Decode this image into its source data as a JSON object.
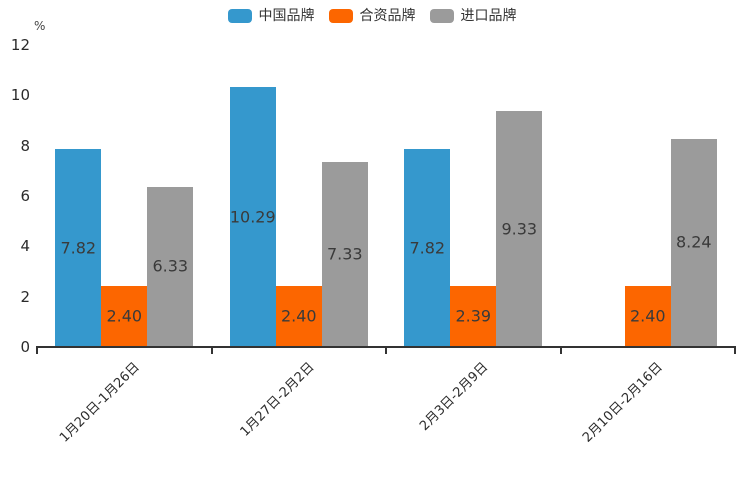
{
  "chart_data": {
    "type": "bar",
    "title": "",
    "unit_label": "%",
    "categories": [
      "1月20日-1月26日",
      "1月27日-2月2日",
      "2月3日-2月9日",
      "2月10日-2月16日"
    ],
    "series": [
      {
        "name": "中国品牌",
        "color": "#3598cd",
        "values": [
          7.82,
          10.29,
          7.82,
          null
        ]
      },
      {
        "name": "合资品牌",
        "color": "#fc6600",
        "values": [
          2.4,
          2.4,
          2.39,
          2.4
        ]
      },
      {
        "name": "进口品牌",
        "color": "#9b9b9b",
        "values": [
          6.33,
          7.33,
          9.33,
          8.24
        ]
      }
    ],
    "ylim": [
      0,
      12
    ],
    "y_ticks": [
      0,
      2,
      4,
      6,
      8,
      10,
      12
    ],
    "grid": false,
    "legend_position": "top-center",
    "value_label_decimals": 2
  }
}
